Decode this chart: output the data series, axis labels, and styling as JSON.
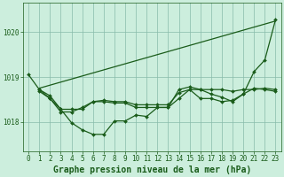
{
  "title": "Graphe pression niveau de la mer (hPa)",
  "background_color": "#cceedd",
  "grid_color": "#88bbaa",
  "line_color": "#1a5c1a",
  "spine_color": "#1a5c1a",
  "xlim": [
    -0.5,
    23.5
  ],
  "ylim": [
    1017.35,
    1020.65
  ],
  "yticks": [
    1018,
    1019,
    1020
  ],
  "xticks": [
    0,
    1,
    2,
    3,
    4,
    5,
    6,
    7,
    8,
    9,
    10,
    11,
    12,
    13,
    14,
    15,
    16,
    17,
    18,
    19,
    20,
    21,
    22,
    23
  ],
  "series": [
    {
      "x": [
        0,
        1,
        2,
        3,
        4,
        5,
        6,
        7,
        8,
        9,
        10,
        11,
        12,
        13,
        14,
        15,
        16,
        17,
        18,
        19,
        20,
        21,
        22,
        23
      ],
      "y": [
        1019.05,
        1018.72,
        1018.52,
        1018.28,
        1017.98,
        1017.82,
        1017.72,
        1017.72,
        1018.02,
        1018.02,
        1018.15,
        1018.12,
        1018.32,
        1018.32,
        1018.52,
        1018.72,
        1018.52,
        1018.52,
        1018.45,
        1018.48,
        1018.62,
        1019.12,
        1019.38,
        1020.28
      ]
    },
    {
      "x": [
        1,
        23
      ],
      "y": [
        1018.75,
        1020.25
      ]
    },
    {
      "x": [
        1,
        2,
        3,
        4,
        5,
        6,
        7,
        8,
        9,
        10,
        11,
        12,
        13,
        14,
        15,
        16,
        17,
        18,
        19,
        20,
        21,
        22,
        23
      ],
      "y": [
        1018.72,
        1018.58,
        1018.28,
        1018.28,
        1018.28,
        1018.45,
        1018.48,
        1018.45,
        1018.45,
        1018.38,
        1018.38,
        1018.38,
        1018.38,
        1018.65,
        1018.72,
        1018.72,
        1018.72,
        1018.72,
        1018.68,
        1018.72,
        1018.72,
        1018.75,
        1018.72
      ]
    },
    {
      "x": [
        1,
        2,
        3,
        4,
        5,
        6,
        7,
        8,
        9,
        10,
        11,
        12,
        13,
        14,
        15,
        16,
        17,
        18,
        19,
        20,
        21,
        22,
        23
      ],
      "y": [
        1018.68,
        1018.52,
        1018.22,
        1018.22,
        1018.32,
        1018.45,
        1018.45,
        1018.42,
        1018.42,
        1018.32,
        1018.32,
        1018.32,
        1018.32,
        1018.72,
        1018.78,
        1018.72,
        1018.62,
        1018.55,
        1018.45,
        1018.62,
        1018.75,
        1018.72,
        1018.68
      ]
    }
  ],
  "markers": [
    true,
    false,
    true,
    true
  ],
  "marker": "D",
  "markersize": 2.0,
  "linewidth": 0.9,
  "title_fontsize": 7,
  "tick_fontsize": 5.5
}
